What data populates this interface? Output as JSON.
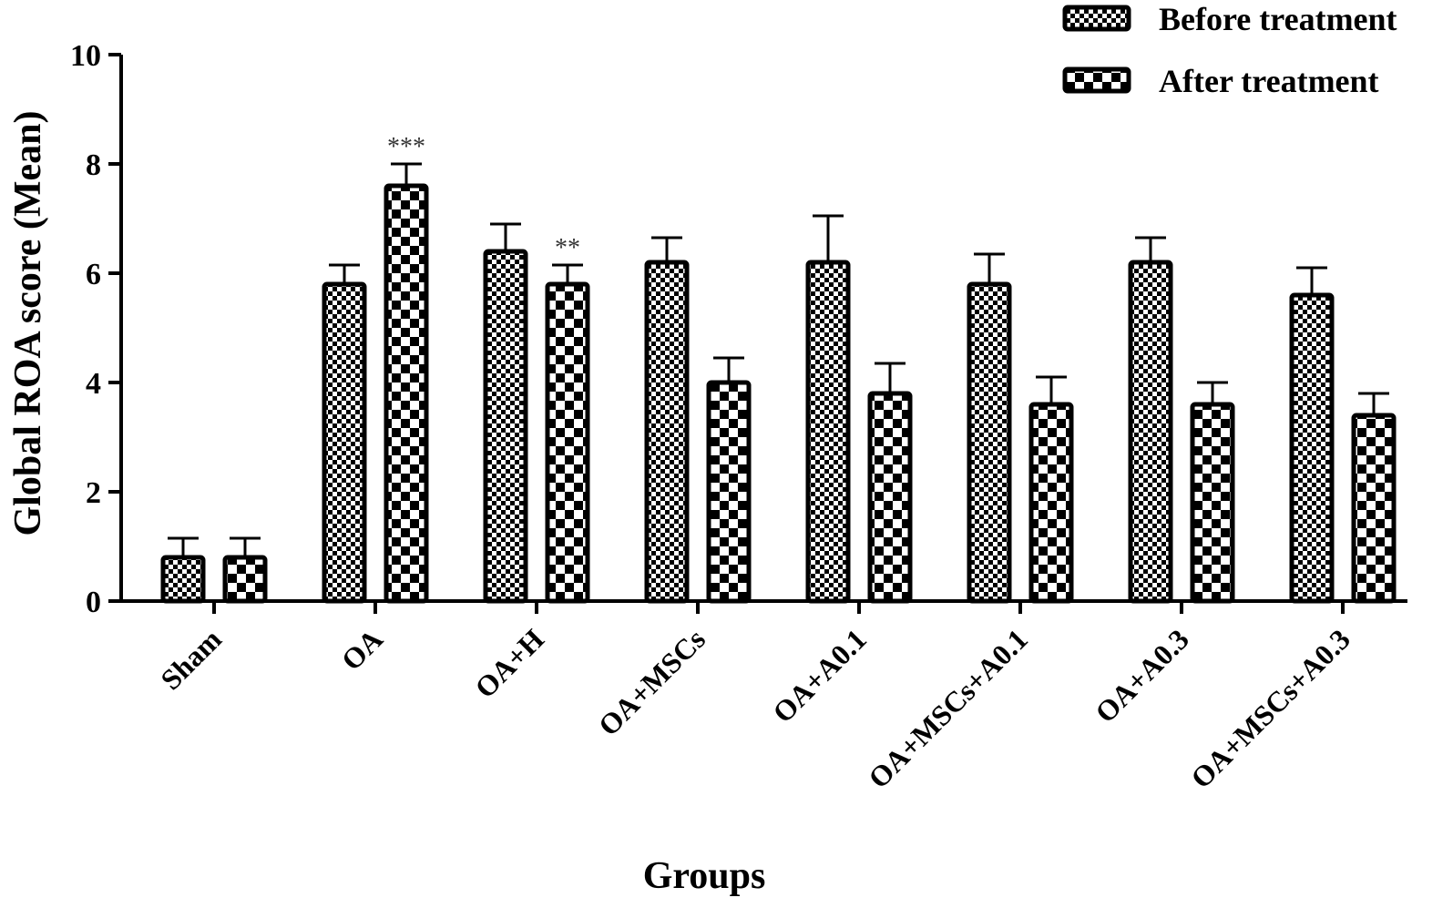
{
  "chart_data": {
    "type": "bar",
    "categories": [
      "Sham",
      "OA",
      "OA+H",
      "OA+MSCs",
      "OA+A0.1",
      "OA+MSCs+A0.1",
      "OA+A0.3",
      "OA+MSCs+A0.3"
    ],
    "series": [
      {
        "name": "Before treatment",
        "values": [
          0.8,
          5.8,
          6.4,
          6.2,
          6.2,
          5.8,
          6.2,
          5.6
        ],
        "errors": [
          0.35,
          0.35,
          0.5,
          0.45,
          0.85,
          0.55,
          0.45,
          0.5
        ]
      },
      {
        "name": "After treatment",
        "values": [
          0.8,
          7.6,
          5.8,
          4.0,
          3.8,
          3.6,
          3.6,
          3.4
        ],
        "errors": [
          0.35,
          0.4,
          0.35,
          0.45,
          0.55,
          0.5,
          0.4,
          0.4
        ]
      }
    ],
    "annotations": [
      {
        "category": "OA",
        "series": "After treatment",
        "text": "***"
      },
      {
        "category": "OA+H",
        "series": "After treatment",
        "text": "**"
      }
    ],
    "xlabel": "Groups",
    "ylabel": "Global ROA score (Mean)",
    "ylim": [
      0,
      10
    ],
    "yticks": [
      "0",
      "2",
      "4",
      "6",
      "8",
      "10"
    ],
    "legend_position": "top-right",
    "grid": false,
    "colors": {
      "bar_dark": "#000000",
      "bar_light": "#ffffff",
      "annotation": "#333333"
    }
  }
}
